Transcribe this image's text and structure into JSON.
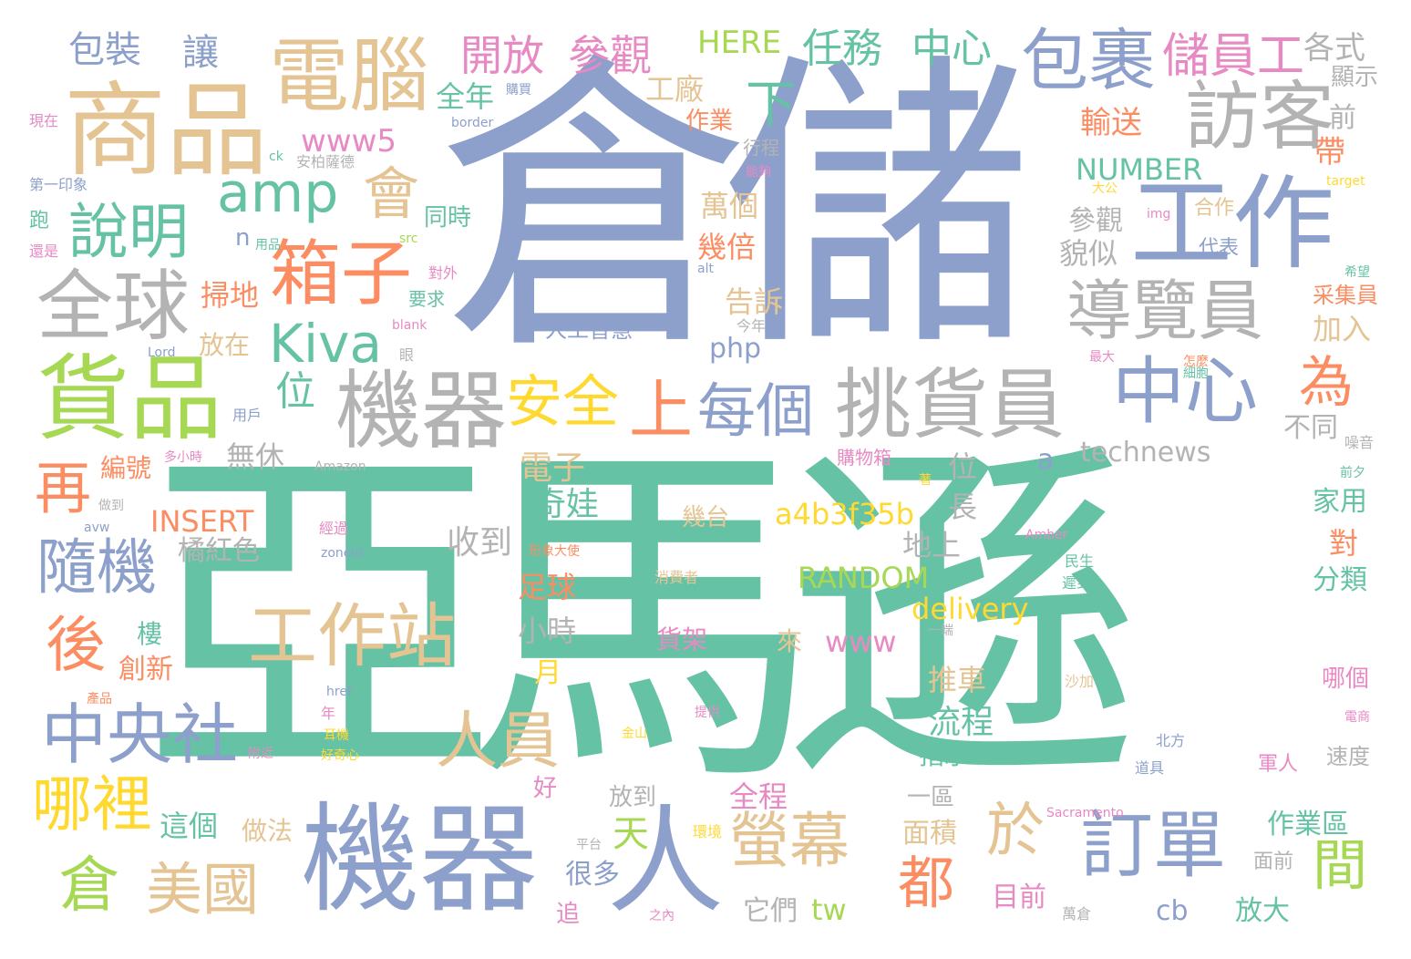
{
  "palette": {
    "green": "#66c2a5",
    "orange": "#fc8d62",
    "blue": "#8da0cb",
    "pink": "#e78ac3",
    "lime": "#a6d854",
    "yellow": "#ffd92f",
    "tan": "#e5c494",
    "gray": "#b3b3b3"
  },
  "words": [
    {
      "text": "亞馬遜",
      "color": "green"
    },
    {
      "text": "倉儲",
      "color": "blue"
    },
    {
      "text": "機器",
      "color": "blue"
    },
    {
      "text": "商品",
      "color": "tan"
    },
    {
      "text": "工作",
      "color": "blue"
    },
    {
      "text": "貨品",
      "color": "lime"
    },
    {
      "text": "機器",
      "color": "gray"
    },
    {
      "text": "人",
      "color": "blue"
    },
    {
      "text": "電腦",
      "color": "tan"
    },
    {
      "text": "訪客",
      "color": "gray"
    },
    {
      "text": "挑貨員",
      "color": "gray"
    },
    {
      "text": "包裹",
      "color": "blue"
    },
    {
      "text": "全球",
      "color": "gray"
    },
    {
      "text": "工作站",
      "color": "tan"
    },
    {
      "text": "中心",
      "color": "blue"
    },
    {
      "text": "訂單",
      "color": "blue"
    },
    {
      "text": "導覽員",
      "color": "gray"
    },
    {
      "text": "箱子",
      "color": "orange"
    },
    {
      "text": "說明",
      "color": "green"
    },
    {
      "text": "amp",
      "color": "green"
    },
    {
      "text": "中央社",
      "color": "blue"
    },
    {
      "text": "人員",
      "color": "tan"
    },
    {
      "text": "每個",
      "color": "blue"
    },
    {
      "text": "Kiva",
      "color": "green"
    },
    {
      "text": "螢幕",
      "color": "tan"
    },
    {
      "text": "隨機",
      "color": "blue"
    },
    {
      "text": "安全",
      "color": "yellow"
    },
    {
      "text": "上",
      "color": "orange"
    },
    {
      "text": "美國",
      "color": "tan"
    },
    {
      "text": "倉",
      "color": "lime"
    },
    {
      "text": "哪裡",
      "color": "yellow"
    },
    {
      "text": "後",
      "color": "orange"
    },
    {
      "text": "再",
      "color": "orange"
    },
    {
      "text": "會",
      "color": "tan"
    },
    {
      "text": "於",
      "color": "tan"
    },
    {
      "text": "都",
      "color": "orange"
    },
    {
      "text": "為",
      "color": "orange"
    },
    {
      "text": "間",
      "color": "lime"
    },
    {
      "text": "下",
      "color": "green"
    },
    {
      "text": "任務",
      "color": "green"
    },
    {
      "text": "中心",
      "color": "green"
    },
    {
      "text": "儲員工",
      "color": "pink"
    },
    {
      "text": "開放",
      "color": "pink"
    },
    {
      "text": "參觀",
      "color": "pink"
    },
    {
      "text": "HERE",
      "color": "lime"
    },
    {
      "text": "包裝",
      "color": "blue"
    },
    {
      "text": "讓",
      "color": "blue"
    },
    {
      "text": "各式",
      "color": "gray"
    },
    {
      "text": "顯示",
      "color": "gray"
    },
    {
      "text": "全年",
      "color": "green"
    },
    {
      "text": "工廠",
      "color": "tan"
    },
    {
      "text": "作業",
      "color": "orange"
    },
    {
      "text": "輸送",
      "color": "orange"
    },
    {
      "text": "前",
      "color": "gray"
    },
    {
      "text": "帶",
      "color": "orange"
    },
    {
      "text": "www5",
      "color": "pink"
    },
    {
      "text": "NUMBER",
      "color": "green"
    },
    {
      "text": "萬個",
      "color": "tan"
    },
    {
      "text": "同時",
      "color": "green"
    },
    {
      "text": "幾倍",
      "color": "orange"
    },
    {
      "text": "參觀",
      "color": "gray"
    },
    {
      "text": "貌似",
      "color": "gray"
    },
    {
      "text": "合作",
      "color": "tan"
    },
    {
      "text": "代表",
      "color": "blue"
    },
    {
      "text": "采集員",
      "color": "orange"
    },
    {
      "text": "加入",
      "color": "tan"
    },
    {
      "text": "告訴",
      "color": "tan"
    },
    {
      "text": "php",
      "color": "blue"
    },
    {
      "text": "人工智慧",
      "color": "blue"
    },
    {
      "text": "掃地",
      "color": "orange"
    },
    {
      "text": "位",
      "color": "green"
    },
    {
      "text": "放在",
      "color": "tan"
    },
    {
      "text": "無休",
      "color": "gray"
    },
    {
      "text": "technews",
      "color": "gray"
    },
    {
      "text": "不同",
      "color": "gray"
    },
    {
      "text": "電子",
      "color": "tan"
    },
    {
      "text": "奇娃",
      "color": "green"
    },
    {
      "text": "位",
      "color": "gray"
    },
    {
      "text": "a",
      "color": "blue"
    },
    {
      "text": "編號",
      "color": "orange"
    },
    {
      "text": "INSERT",
      "color": "orange"
    },
    {
      "text": "a4b3f35b",
      "color": "yellow"
    },
    {
      "text": "長",
      "color": "gray"
    },
    {
      "text": "收到",
      "color": "gray"
    },
    {
      "text": "家用",
      "color": "green"
    },
    {
      "text": "對",
      "color": "orange"
    },
    {
      "text": "橘紅色",
      "color": "gray"
    },
    {
      "text": "幾台",
      "color": "tan"
    },
    {
      "text": "地上",
      "color": "gray"
    },
    {
      "text": "RANDOM",
      "color": "lime"
    },
    {
      "text": "足球",
      "color": "orange"
    },
    {
      "text": "分類",
      "color": "green"
    },
    {
      "text": "delivery",
      "color": "yellow"
    },
    {
      "text": "小時",
      "color": "gray"
    },
    {
      "text": "樓",
      "color": "green"
    },
    {
      "text": "月",
      "color": "yellow"
    },
    {
      "text": "創新",
      "color": "orange"
    },
    {
      "text": "貨架",
      "color": "pink"
    },
    {
      "text": "www",
      "color": "pink"
    },
    {
      "text": "來",
      "color": "tan"
    },
    {
      "text": "推車",
      "color": "tan"
    },
    {
      "text": "哪個",
      "color": "pink"
    },
    {
      "text": "流程",
      "color": "green"
    },
    {
      "text": "指示",
      "color": "green"
    },
    {
      "text": "速度",
      "color": "gray"
    },
    {
      "text": "全程",
      "color": "pink"
    },
    {
      "text": "好",
      "color": "pink"
    },
    {
      "text": "放到",
      "color": "gray"
    },
    {
      "text": "一區",
      "color": "gray"
    },
    {
      "text": "這個",
      "color": "green"
    },
    {
      "text": "做法",
      "color": "tan"
    },
    {
      "text": "天",
      "color": "lime"
    },
    {
      "text": "作業區",
      "color": "green"
    },
    {
      "text": "面積",
      "color": "tan"
    },
    {
      "text": "很多",
      "color": "blue"
    },
    {
      "text": "面前",
      "color": "gray"
    },
    {
      "text": "tw",
      "color": "lime"
    },
    {
      "text": "目前",
      "color": "pink"
    },
    {
      "text": "放大",
      "color": "green"
    },
    {
      "text": "它們",
      "color": "gray"
    },
    {
      "text": "cb",
      "color": "blue"
    },
    {
      "text": "追",
      "color": "pink"
    },
    {
      "text": "現在",
      "color": "pink"
    },
    {
      "text": "第一印象",
      "color": "blue"
    },
    {
      "text": "跑",
      "color": "green"
    },
    {
      "text": "還是",
      "color": "pink"
    },
    {
      "text": "購買",
      "color": "blue"
    },
    {
      "text": "border",
      "color": "blue"
    },
    {
      "text": "安柏薩德",
      "color": "gray"
    },
    {
      "text": "行程",
      "color": "gray"
    },
    {
      "text": "能夠",
      "color": "pink"
    },
    {
      "text": "用品",
      "color": "green"
    },
    {
      "text": "src",
      "color": "lime"
    },
    {
      "text": "對外",
      "color": "pink"
    },
    {
      "text": "要求",
      "color": "green"
    },
    {
      "text": "n",
      "color": "blue"
    },
    {
      "text": "ck",
      "color": "green"
    },
    {
      "text": "img",
      "color": "pink"
    },
    {
      "text": "alt",
      "color": "blue"
    },
    {
      "text": "大公",
      "color": "yellow"
    },
    {
      "text": "target",
      "color": "yellow"
    },
    {
      "text": "Lord",
      "color": "blue"
    },
    {
      "text": "blank",
      "color": "pink"
    },
    {
      "text": "今年",
      "color": "gray"
    },
    {
      "text": "眼",
      "color": "gray"
    },
    {
      "text": "用戶",
      "color": "blue"
    },
    {
      "text": "Amazon",
      "color": "gray"
    },
    {
      "text": "多小時",
      "color": "pink"
    },
    {
      "text": "購物箱",
      "color": "pink"
    },
    {
      "text": "噪音",
      "color": "gray"
    },
    {
      "text": "前夕",
      "color": "green"
    },
    {
      "text": "做到",
      "color": "gray"
    },
    {
      "text": "avw",
      "color": "blue"
    },
    {
      "text": "zoneid",
      "color": "blue"
    },
    {
      "text": "Amber",
      "color": "pink"
    },
    {
      "text": "民生",
      "color": "green"
    },
    {
      "text": "遲到",
      "color": "green"
    },
    {
      "text": "消費者",
      "color": "tan"
    },
    {
      "text": "經過",
      "color": "pink"
    },
    {
      "text": "形象大使",
      "color": "orange"
    },
    {
      "text": "href",
      "color": "blue"
    },
    {
      "text": "耳機",
      "color": "yellow"
    },
    {
      "text": "好奇心",
      "color": "yellow"
    },
    {
      "text": "提供",
      "color": "pink"
    },
    {
      "text": "金山",
      "color": "yellow"
    },
    {
      "text": "北方",
      "color": "blue"
    },
    {
      "text": "沙加",
      "color": "tan"
    },
    {
      "text": "軍人",
      "color": "pink"
    },
    {
      "text": "道具",
      "color": "blue"
    },
    {
      "text": "Sacramento",
      "color": "pink"
    },
    {
      "text": "環境",
      "color": "yellow"
    },
    {
      "text": "萬倉",
      "color": "gray"
    },
    {
      "text": "平台",
      "color": "gray"
    },
    {
      "text": "之內",
      "color": "pink"
    },
    {
      "text": "電商",
      "color": "pink"
    },
    {
      "text": "附近",
      "color": "pink"
    },
    {
      "text": "年",
      "color": "pink"
    },
    {
      "text": "產品",
      "color": "orange"
    },
    {
      "text": "怎麼",
      "color": "orange"
    },
    {
      "text": "細胞",
      "color": "green"
    },
    {
      "text": "一端",
      "color": "gray"
    },
    {
      "text": "著",
      "color": "yellow"
    },
    {
      "text": "最大",
      "color": "pink"
    },
    {
      "text": "希望",
      "color": "green"
    }
  ]
}
